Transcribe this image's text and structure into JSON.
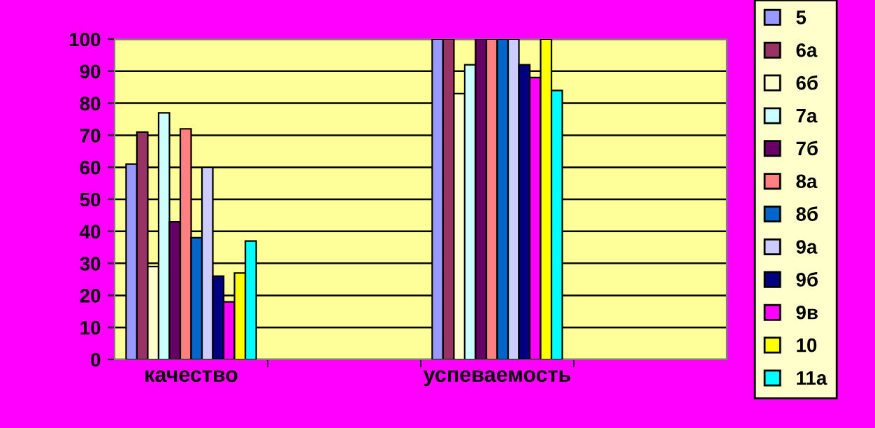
{
  "chart_data": {
    "type": "bar",
    "categories": [
      "качество",
      null,
      "успеваемость",
      null
    ],
    "series": [
      {
        "name": "5",
        "color": "#9999ff",
        "values": [
          61,
          null,
          100,
          null
        ]
      },
      {
        "name": "6а",
        "color": "#993366",
        "values": [
          71,
          null,
          100,
          null
        ]
      },
      {
        "name": "6б",
        "color": "#ffffcc",
        "values": [
          29,
          null,
          83,
          null
        ]
      },
      {
        "name": "7а",
        "color": "#ccffff",
        "values": [
          77,
          null,
          92,
          null
        ]
      },
      {
        "name": "7б",
        "color": "#660066",
        "values": [
          43,
          null,
          100,
          null
        ]
      },
      {
        "name": "8а",
        "color": "#ff8080",
        "values": [
          72,
          null,
          100,
          null
        ]
      },
      {
        "name": "8б",
        "color": "#0066cc",
        "values": [
          38,
          null,
          100,
          null
        ]
      },
      {
        "name": "9а",
        "color": "#ccccff",
        "values": [
          60,
          null,
          100,
          null
        ]
      },
      {
        "name": "9б",
        "color": "#000080",
        "values": [
          26,
          null,
          92,
          null
        ]
      },
      {
        "name": "9в",
        "color": "#ff00ff",
        "values": [
          18,
          null,
          88,
          null
        ]
      },
      {
        "name": "10",
        "color": "#ffff00",
        "values": [
          27,
          null,
          100,
          null
        ]
      },
      {
        "name": "11а",
        "color": "#00ffff",
        "values": [
          37,
          null,
          84,
          null
        ]
      }
    ],
    "ylim": [
      0,
      100
    ],
    "yticks": [
      0,
      10,
      20,
      30,
      40,
      50,
      60,
      70,
      80,
      90,
      100
    ],
    "grid": "y",
    "legend": "right"
  }
}
